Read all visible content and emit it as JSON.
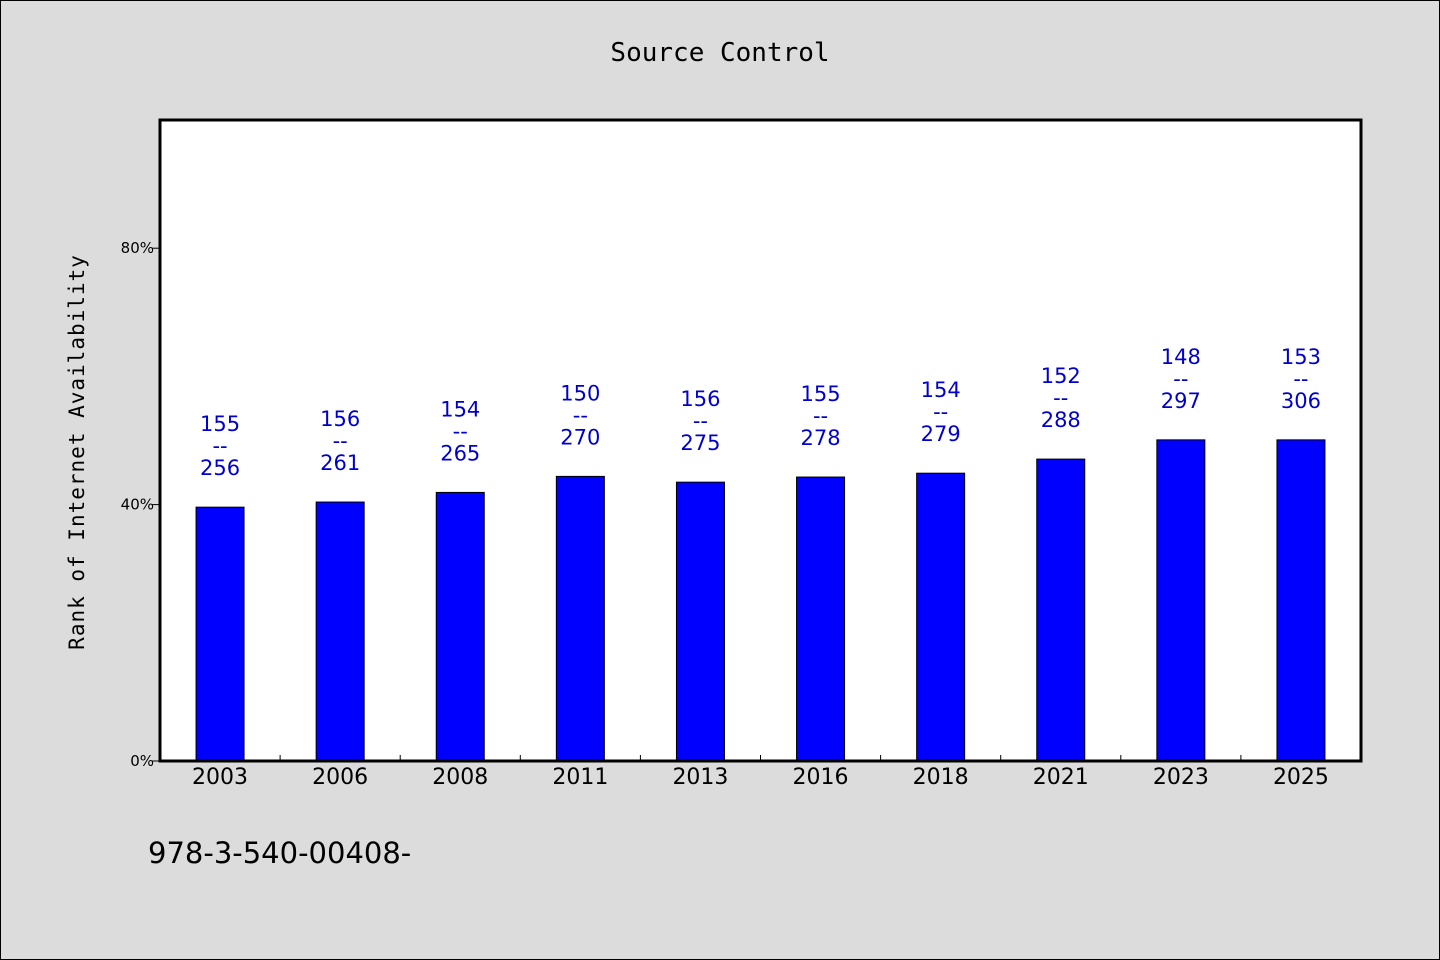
{
  "chart_data": {
    "type": "bar",
    "title": "Source Control",
    "xlabel": "",
    "ylabel": "Rank of Internet Availability",
    "categories": [
      "2003",
      "2006",
      "2008",
      "2011",
      "2013",
      "2016",
      "2018",
      "2021",
      "2023",
      "2025"
    ],
    "values": [
      39.6,
      40.4,
      41.9,
      44.4,
      43.5,
      44.3,
      44.9,
      47.1,
      50.1,
      50.1
    ],
    "value_format": "percent",
    "ylim": [
      0,
      100
    ],
    "yticks": [
      0,
      40,
      80
    ],
    "ytick_labels": [
      "0%",
      "40%",
      "80%"
    ],
    "data_labels": [
      {
        "top": "155",
        "mid": "--",
        "bottom": "256"
      },
      {
        "top": "156",
        "mid": "--",
        "bottom": "261"
      },
      {
        "top": "154",
        "mid": "--",
        "bottom": "265"
      },
      {
        "top": "150",
        "mid": "--",
        "bottom": "270"
      },
      {
        "top": "156",
        "mid": "--",
        "bottom": "275"
      },
      {
        "top": "155",
        "mid": "--",
        "bottom": "278"
      },
      {
        "top": "154",
        "mid": "--",
        "bottom": "279"
      },
      {
        "top": "152",
        "mid": "--",
        "bottom": "288"
      },
      {
        "top": "148",
        "mid": "--",
        "bottom": "297"
      },
      {
        "top": "153",
        "mid": "--",
        "bottom": "306"
      }
    ],
    "grid": false,
    "legend": "none",
    "colors": {
      "bar": "#0000ff",
      "bar_edge": "#000000",
      "data_label": "#0000cc",
      "plot_bg": "#ffffff",
      "figure_bg": "#dcdcdc"
    }
  },
  "footer": {
    "text": "978-3-540-00408-"
  }
}
